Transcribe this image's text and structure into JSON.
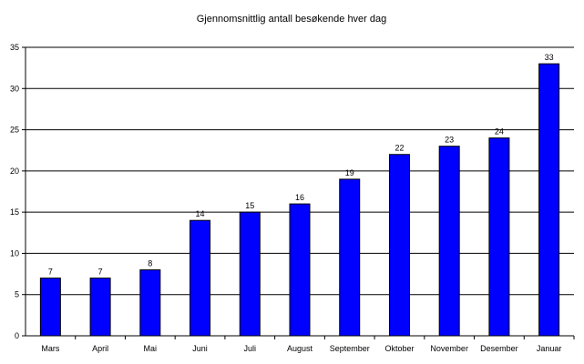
{
  "chart_data": {
    "type": "bar",
    "title": "Gjennomsnittlig antall besøkende hver dag",
    "xlabel": "",
    "ylabel": "",
    "categories": [
      "Mars",
      "April",
      "Mai",
      "Juni",
      "Juli",
      "August",
      "September",
      "Oktober",
      "November",
      "Desember",
      "Januar"
    ],
    "values": [
      7,
      7,
      8,
      14,
      15,
      16,
      19,
      22,
      23,
      24,
      33
    ],
    "data_labels": [
      "7",
      "7",
      "8",
      "14",
      "15",
      "16",
      "19",
      "22",
      "23",
      "24",
      "33"
    ],
    "ylim": [
      0,
      35
    ],
    "yticks": [
      0,
      5,
      10,
      15,
      20,
      25,
      30,
      35
    ],
    "grid": true,
    "legend": "none",
    "bar_color": "#0000FF",
    "bar_edge_color": "#000000"
  }
}
